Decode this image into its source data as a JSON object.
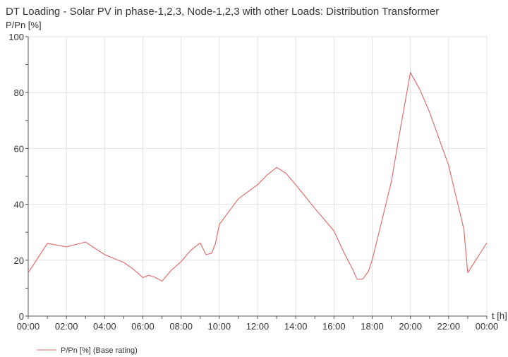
{
  "chart_data": {
    "type": "line",
    "title": "DT Loading - Solar PV in phase-1,2,3, Node-1,2,3 with other Loads: Distribution Transformer",
    "ylabel": "P/Pn [%]",
    "xlabel": "t [h]",
    "ylim": [
      0,
      100
    ],
    "xlim": [
      0,
      24
    ],
    "x_tick_labels": [
      "00:00",
      "02:00",
      "04:00",
      "06:00",
      "08:00",
      "10:00",
      "12:00",
      "14:00",
      "16:00",
      "18:00",
      "20:00",
      "22:00",
      "00:00"
    ],
    "y_tick_labels": [
      "0",
      "20",
      "40",
      "60",
      "80",
      "100"
    ],
    "grid": true,
    "legend_position": "bottom-left",
    "series": [
      {
        "name": "P/Pn [%] (Base rating)",
        "color": "#e07070",
        "x": [
          0,
          1,
          2,
          3,
          4,
          5,
          5.5,
          6,
          6.3,
          6.6,
          7,
          7.5,
          8,
          8.5,
          9,
          9.3,
          9.6,
          9.8,
          10,
          11,
          12,
          12.5,
          13,
          13.5,
          14,
          15,
          16,
          16.5,
          17,
          17.2,
          17.5,
          17.8,
          18,
          19,
          19.5,
          20,
          20.5,
          21,
          22,
          22.8,
          23,
          24
        ],
        "values": [
          15.5,
          26,
          24.8,
          26.5,
          22,
          19.2,
          16.8,
          13.8,
          14.6,
          14,
          12.5,
          16.5,
          19.5,
          23.5,
          26.2,
          22,
          22.5,
          26,
          32.8,
          42,
          47,
          50.5,
          53.2,
          51,
          47,
          38.5,
          30.5,
          23,
          16.5,
          13.2,
          13.2,
          16,
          20,
          48,
          68,
          87.2,
          81,
          73,
          54,
          31,
          15.5,
          26.2
        ]
      }
    ]
  }
}
